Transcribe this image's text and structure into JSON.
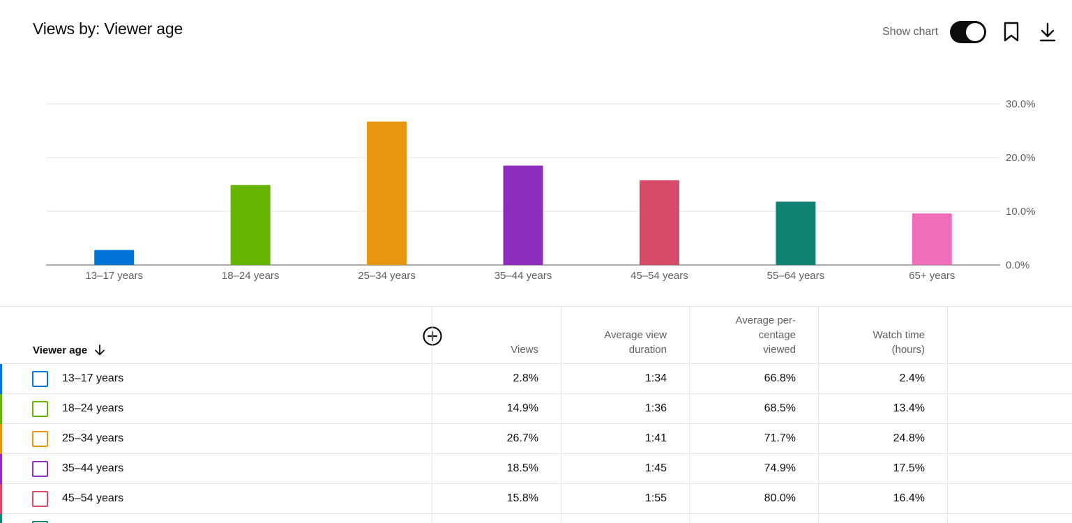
{
  "header": {
    "title": "Views by: Viewer age",
    "show_chart_label": "Show chart",
    "toggle_on": true
  },
  "chart_data": {
    "type": "bar",
    "categories": [
      "13–17 years",
      "18–24 years",
      "25–34 years",
      "35–44 years",
      "45–54 years",
      "55–64 years",
      "65+ years"
    ],
    "values": [
      2.8,
      14.9,
      26.7,
      18.5,
      15.8,
      11.8,
      9.6
    ],
    "colors": [
      "#0073d6",
      "#64b400",
      "#e6960f",
      "#8c2dbe",
      "#d74b69",
      "#0f8273",
      "#f06eb9"
    ],
    "yticks": [
      "0.0%",
      "10.0%",
      "20.0%",
      "30.0%"
    ],
    "ylim": [
      0,
      30
    ],
    "grid": true
  },
  "table": {
    "columns": {
      "first": "Viewer age",
      "views": "Views",
      "avg_view_duration_1": "Average view",
      "avg_view_duration_2": "duration",
      "avg_pct_1": "Average per-",
      "avg_pct_2": "centage",
      "avg_pct_3": "viewed",
      "watch_time_1": "Watch time",
      "watch_time_2": "(hours)"
    },
    "rows": [
      {
        "label": "13–17 years",
        "views": "2.8%",
        "duration": "1:34",
        "pct": "66.8%",
        "watch": "2.4%"
      },
      {
        "label": "18–24 years",
        "views": "14.9%",
        "duration": "1:36",
        "pct": "68.5%",
        "watch": "13.4%"
      },
      {
        "label": "25–34 years",
        "views": "26.7%",
        "duration": "1:41",
        "pct": "71.7%",
        "watch": "24.8%"
      },
      {
        "label": "35–44 years",
        "views": "18.5%",
        "duration": "1:45",
        "pct": "74.9%",
        "watch": "17.5%"
      },
      {
        "label": "45–54 years",
        "views": "15.8%",
        "duration": "1:55",
        "pct": "80.0%",
        "watch": "16.4%"
      },
      {
        "label": "",
        "views": "",
        "duration": "",
        "pct": "",
        "watch": ""
      }
    ]
  },
  "icons": {
    "bookmark": "bookmark-icon",
    "download": "download-icon",
    "add_column": "add-circle-icon",
    "sort": "arrow-down-icon"
  }
}
